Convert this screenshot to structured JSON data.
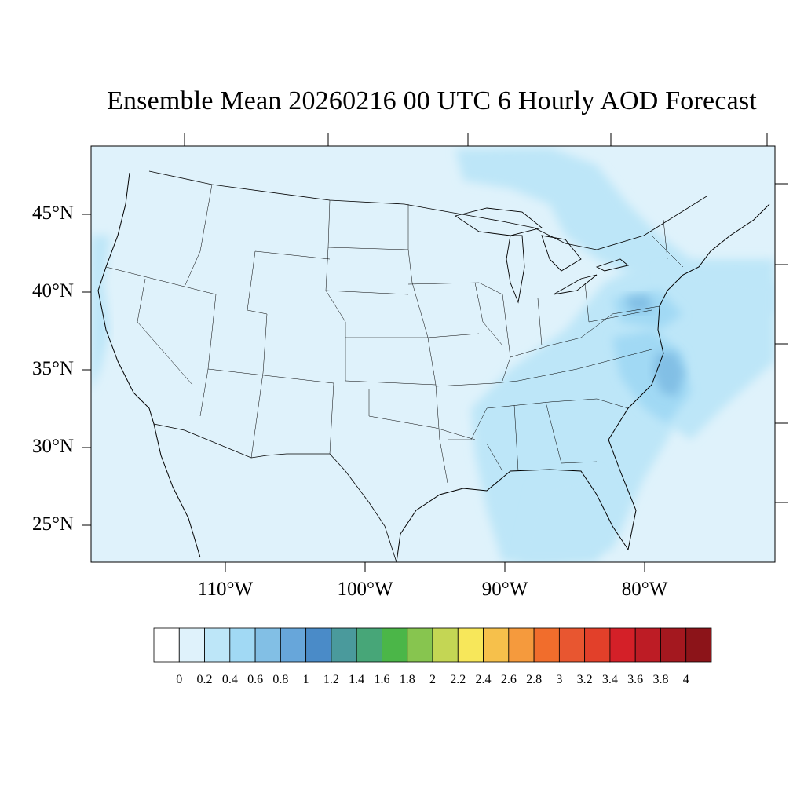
{
  "title": "Ensemble Mean 20260216 00 UTC 6 Hourly AOD Forecast",
  "map": {
    "extent": {
      "lon_min": -119,
      "lon_max": -70,
      "lat_min": 22.7,
      "lat_max": 49.3
    },
    "lat_ticks": [
      {
        "lat": 45,
        "label": "45°N"
      },
      {
        "lat": 40,
        "label": "40°N"
      },
      {
        "lat": 35,
        "label": "35°N"
      },
      {
        "lat": 30,
        "label": "30°N"
      },
      {
        "lat": 25,
        "label": "25°N"
      }
    ],
    "lon_ticks": [
      {
        "lon": -110,
        "label": "110°W"
      },
      {
        "lon": -100,
        "label": "100°W"
      },
      {
        "lon": -90,
        "label": "90°W"
      },
      {
        "lon": -80,
        "label": "80°W"
      }
    ],
    "background_color": "#dff2fb"
  },
  "colorbar": {
    "levels": [
      "0",
      "0.2",
      "0.4",
      "0.6",
      "0.8",
      "1",
      "1.2",
      "1.4",
      "1.6",
      "1.8",
      "2",
      "2.2",
      "2.4",
      "2.6",
      "2.8",
      "3",
      "3.2",
      "3.4",
      "3.6",
      "3.8",
      "4"
    ],
    "colors": [
      "#ffffff",
      "#dff2fb",
      "#bde6f8",
      "#a1d9f4",
      "#82bfe5",
      "#67a6da",
      "#4a8bc8",
      "#4a9a9c",
      "#47a678",
      "#4bb648",
      "#87c54f",
      "#c4d654",
      "#f7e75a",
      "#f6c04b",
      "#f59a3d",
      "#f16d2c",
      "#e85630",
      "#e2402a",
      "#d42028",
      "#bd1c25",
      "#a4181f",
      "#8c1419"
    ]
  }
}
